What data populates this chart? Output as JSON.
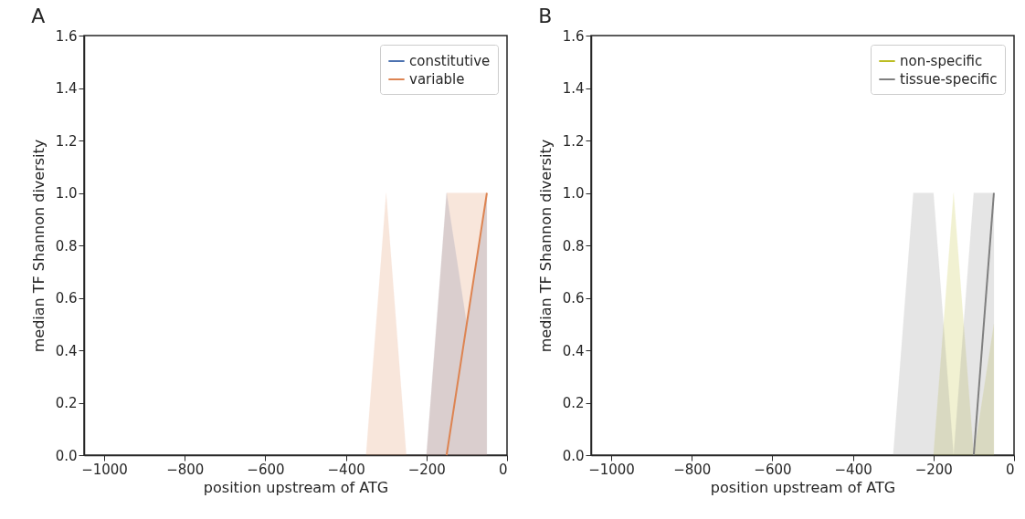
{
  "chart_data": [
    {
      "type": "line",
      "title": "A",
      "xlabel": "position upstream of ATG",
      "ylabel": "median TF Shannon diversity",
      "xlim": [
        -1050,
        0
      ],
      "ylim": [
        0,
        1.6
      ],
      "xticks": [
        {
          "value": -1000,
          "label": "−1000"
        },
        {
          "value": -800,
          "label": "−800"
        },
        {
          "value": -600,
          "label": "−600"
        },
        {
          "value": -400,
          "label": "−400"
        },
        {
          "value": -200,
          "label": "−200"
        },
        0
      ],
      "yticks": [
        {
          "value": 0,
          "label": "0.0"
        },
        {
          "value": 0.2,
          "label": "0.2"
        },
        {
          "value": 0.4,
          "label": "0.4"
        },
        {
          "value": 0.6,
          "label": "0.6"
        },
        {
          "value": 0.8,
          "label": "0.8"
        },
        {
          "value": 1,
          "label": "1.0"
        },
        {
          "value": 1.2,
          "label": "1.2"
        },
        {
          "value": 1.4,
          "label": "1.4"
        },
        {
          "value": 1.6,
          "label": "1.6"
        }
      ],
      "legend": "top right",
      "grid": false,
      "series": [
        {
          "name": "constitutive",
          "color": "#4c72b0",
          "x": [
            -200,
            -150,
            -100,
            -50
          ],
          "values": [
            null,
            null,
            null,
            null
          ],
          "lower": [
            0,
            0,
            0,
            0
          ],
          "upper": [
            0,
            1,
            0.5,
            1
          ]
        },
        {
          "name": "variable",
          "color": "#dd8452",
          "x": [
            -350,
            -300,
            -250,
            -200,
            -150,
            -100,
            -50
          ],
          "values": [
            null,
            null,
            null,
            null,
            0,
            0.5,
            1
          ],
          "lower": [
            0,
            0,
            0,
            0,
            0,
            0,
            0
          ],
          "upper": [
            0,
            1,
            0,
            0,
            1,
            1,
            1
          ]
        }
      ]
    },
    {
      "type": "line",
      "title": "B",
      "xlabel": "position upstream of ATG",
      "ylabel": "median TF Shannon diversity",
      "xlim": [
        -1050,
        0
      ],
      "ylim": [
        0,
        1.6
      ],
      "xticks": [
        {
          "value": -1000,
          "label": "−1000"
        },
        {
          "value": -800,
          "label": "−800"
        },
        {
          "value": -600,
          "label": "−600"
        },
        {
          "value": -400,
          "label": "−400"
        },
        {
          "value": -200,
          "label": "−200"
        },
        0
      ],
      "yticks": [
        {
          "value": 0,
          "label": "0.0"
        },
        {
          "value": 0.2,
          "label": "0.2"
        },
        {
          "value": 0.4,
          "label": "0.4"
        },
        {
          "value": 0.6,
          "label": "0.6"
        },
        {
          "value": 0.8,
          "label": "0.8"
        },
        {
          "value": 1,
          "label": "1.0"
        },
        {
          "value": 1.2,
          "label": "1.2"
        },
        {
          "value": 1.4,
          "label": "1.4"
        },
        {
          "value": 1.6,
          "label": "1.6"
        }
      ],
      "legend": "top right",
      "grid": false,
      "series": [
        {
          "name": "non-specific",
          "color": "#bcbd22",
          "x": [
            -200,
            -150,
            -100,
            -50
          ],
          "values": [
            null,
            null,
            null,
            null
          ],
          "lower": [
            0,
            0,
            0,
            0
          ],
          "upper": [
            0,
            1,
            0,
            0.5
          ]
        },
        {
          "name": "tissue-specific",
          "color": "#7f7f7f",
          "x": [
            -300,
            -250,
            -200,
            -150,
            -100,
            -50
          ],
          "values": [
            null,
            null,
            null,
            null,
            0,
            1
          ],
          "lower": [
            0,
            0,
            0,
            0,
            0,
            0
          ],
          "upper": [
            0,
            1,
            1,
            0,
            1,
            1
          ]
        }
      ]
    }
  ]
}
